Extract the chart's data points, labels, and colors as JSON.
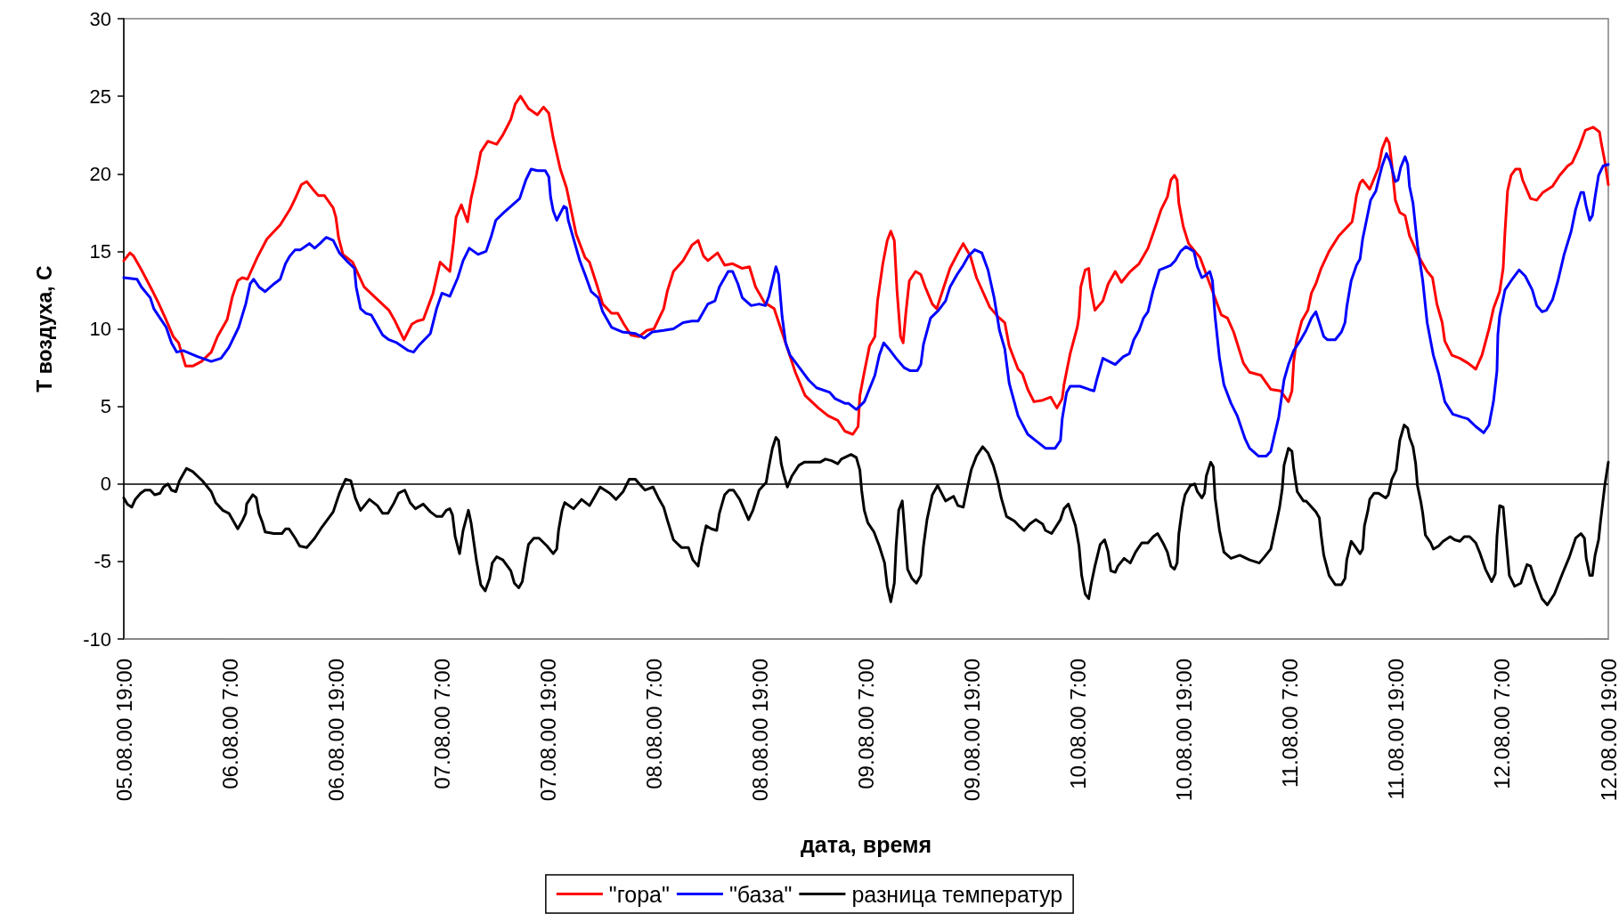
{
  "chart_data": {
    "type": "line",
    "xlabel": "дата, время",
    "ylabel": "Т воздуха, С",
    "xlim": [
      "2000-08-05T19:00",
      "2000-08-12T19:00"
    ],
    "xticks": [
      {
        "value": "2000-08-05T19:00",
        "label": "05.08.00 19:00"
      },
      {
        "value": "2000-08-06T07:00",
        "label": "06.08.00 7:00"
      },
      {
        "value": "2000-08-06T19:00",
        "label": "06.08.00 19:00"
      },
      {
        "value": "2000-08-07T07:00",
        "label": "07.08.00 7:00"
      },
      {
        "value": "2000-08-07T19:00",
        "label": "07.08.00 19:00"
      },
      {
        "value": "2000-08-08T07:00",
        "label": "08.08.00 7:00"
      },
      {
        "value": "2000-08-08T19:00",
        "label": "08.08.00 19:00"
      },
      {
        "value": "2000-08-09T07:00",
        "label": "09.08.00 7:00"
      },
      {
        "value": "2000-08-09T19:00",
        "label": "09.08.00 19:00"
      },
      {
        "value": "2000-08-10T07:00",
        "label": "10.08.00 7:00"
      },
      {
        "value": "2000-08-10T19:00",
        "label": "10.08.00 19:00"
      },
      {
        "value": "2000-08-11T07:00",
        "label": "11.08.00 7:00"
      },
      {
        "value": "2000-08-11T19:00",
        "label": "11.08.00 19:00"
      },
      {
        "value": "2000-08-12T07:00",
        "label": "12.08.00 7:00"
      },
      {
        "value": "2000-08-12T19:00",
        "label": "12.08.00 19:00"
      }
    ],
    "ylim": [
      -10,
      30
    ],
    "yticks": [
      -10,
      -5,
      0,
      5,
      10,
      15,
      20,
      25,
      30
    ],
    "grid": false,
    "legend": "bottom",
    "marker": "none",
    "line_style": "solid",
    "ref_lines": [
      {
        "axis": "y",
        "value": 0,
        "color": "#000000"
      }
    ],
    "series": [
      {
        "name": "\"гора\"",
        "color": "#ff0000",
        "x": [
          "2000-08-05T19:00",
          "2000-08-05T19:42",
          "2000-08-05T20:06",
          "2000-08-05T21:00",
          "2000-08-05T22:12",
          "2000-08-05T22:54",
          "2000-08-05T23:42",
          "2000-08-06T00:36",
          "2000-08-06T01:12",
          "2000-08-06T02:00",
          "2000-08-06T02:48",
          "2000-08-06T03:48",
          "2000-08-06T04:54",
          "2000-08-06T05:36",
          "2000-08-06T06:42",
          "2000-08-06T07:18",
          "2000-08-06T07:54",
          "2000-08-06T08:24",
          "2000-08-06T09:00",
          "2000-08-06T10:06",
          "2000-08-06T11:12",
          "2000-08-06T12:42",
          "2000-08-06T13:48",
          "2000-08-06T14:24",
          "2000-08-06T15:06",
          "2000-08-06T15:42",
          "2000-08-06T16:24",
          "2000-08-06T17:00",
          "2000-08-06T17:42",
          "2000-08-06T18:42",
          "2000-08-06T19:00",
          "2000-08-06T19:18",
          "2000-08-06T19:48",
          "2000-08-06T20:54",
          "2000-08-06T22:12",
          "2000-08-06T23:30",
          "2000-08-07T01:00",
          "2000-08-07T01:42",
          "2000-08-07T02:42",
          "2000-08-07T03:36",
          "2000-08-07T04:12",
          "2000-08-07T04:54",
          "2000-08-07T06:00",
          "2000-08-07T06:48",
          "2000-08-07T07:54",
          "2000-08-07T08:18",
          "2000-08-07T08:36",
          "2000-08-07T09:12",
          "2000-08-07T09:54",
          "2000-08-07T10:18",
          "2000-08-07T10:54",
          "2000-08-07T11:24",
          "2000-08-07T12:12",
          "2000-08-07T13:12",
          "2000-08-07T13:54",
          "2000-08-07T14:48",
          "2000-08-07T15:18",
          "2000-08-07T15:54",
          "2000-08-07T16:48",
          "2000-08-07T17:48",
          "2000-08-07T18:30",
          "2000-08-07T19:06",
          "2000-08-07T19:36",
          "2000-08-07T20:24",
          "2000-08-07T21:06",
          "2000-08-07T22:12",
          "2000-08-07T23:12",
          "2000-08-07T23:42",
          "2000-08-08T00:30",
          "2000-08-08T01:12",
          "2000-08-08T02:12",
          "2000-08-08T02:54",
          "2000-08-08T03:36",
          "2000-08-08T04:24",
          "2000-08-08T05:18",
          "2000-08-08T06:12",
          "2000-08-08T07:00",
          "2000-08-08T08:06",
          "2000-08-08T08:30",
          "2000-08-08T09:12",
          "2000-08-08T10:18",
          "2000-08-08T11:18",
          "2000-08-08T12:00",
          "2000-08-08T12:36",
          "2000-08-08T13:06",
          "2000-08-08T14:12",
          "2000-08-08T15:00",
          "2000-08-08T15:54",
          "2000-08-08T17:00",
          "2000-08-08T17:48",
          "2000-08-08T18:30",
          "2000-08-08T19:30",
          "2000-08-08T20:36",
          "2000-08-08T21:18",
          "2000-08-08T22:18",
          "2000-08-08T23:00",
          "2000-08-09T00:06",
          "2000-08-09T01:36",
          "2000-08-09T02:42",
          "2000-08-09T03:48",
          "2000-08-09T04:36",
          "2000-08-09T05:30",
          "2000-08-09T06:06",
          "2000-08-09T06:18",
          "2000-08-09T06:48",
          "2000-08-09T07:24",
          "2000-08-09T08:00",
          "2000-08-09T08:18",
          "2000-08-09T08:54",
          "2000-08-09T09:24",
          "2000-08-09T09:48",
          "2000-08-09T10:12",
          "2000-08-09T10:30",
          "2000-08-09T10:54",
          "2000-08-09T11:12",
          "2000-08-09T11:30",
          "2000-08-09T11:54",
          "2000-08-09T12:36",
          "2000-08-09T13:12",
          "2000-08-09T13:42",
          "2000-08-09T14:30",
          "2000-08-09T15:00",
          "2000-08-09T15:48",
          "2000-08-09T16:30",
          "2000-08-09T17:30",
          "2000-08-09T18:00",
          "2000-08-09T18:48",
          "2000-08-09T19:30",
          "2000-08-09T21:00",
          "2000-08-09T21:54",
          "2000-08-09T22:42",
          "2000-08-09T23:12",
          "2000-08-10T00:12",
          "2000-08-10T00:42",
          "2000-08-10T01:18",
          "2000-08-10T02:00",
          "2000-08-10T03:00",
          "2000-08-10T03:54",
          "2000-08-10T04:36",
          "2000-08-10T05:12",
          "2000-08-10T05:24",
          "2000-08-10T06:06",
          "2000-08-10T06:54",
          "2000-08-10T07:06",
          "2000-08-10T07:18",
          "2000-08-10T07:48",
          "2000-08-10T08:12",
          "2000-08-10T08:24",
          "2000-08-10T08:54",
          "2000-08-10T09:48",
          "2000-08-10T10:24",
          "2000-08-10T11:12",
          "2000-08-10T11:54",
          "2000-08-10T12:54",
          "2000-08-10T13:54",
          "2000-08-10T14:54",
          "2000-08-10T15:42",
          "2000-08-10T16:24",
          "2000-08-10T17:06",
          "2000-08-10T17:30",
          "2000-08-10T17:54",
          "2000-08-10T18:12",
          "2000-08-10T18:24",
          "2000-08-10T18:54",
          "2000-08-10T19:30",
          "2000-08-10T20:48",
          "2000-08-10T21:54",
          "2000-08-10T23:12",
          "2000-08-10T23:54",
          "2000-08-11T00:36",
          "2000-08-11T01:42",
          "2000-08-11T02:24",
          "2000-08-11T03:42",
          "2000-08-11T04:48",
          "2000-08-11T05:54",
          "2000-08-11T06:48",
          "2000-08-11T07:12",
          "2000-08-11T07:24",
          "2000-08-11T07:42",
          "2000-08-11T08:18",
          "2000-08-11T09:00",
          "2000-08-11T09:24",
          "2000-08-11T09:54",
          "2000-08-11T10:30",
          "2000-08-11T11:24",
          "2000-08-11T12:30",
          "2000-08-11T14:00",
          "2000-08-11T14:12",
          "2000-08-11T14:30",
          "2000-08-11T14:54",
          "2000-08-11T15:12",
          "2000-08-11T16:00",
          "2000-08-11T16:30",
          "2000-08-11T17:00",
          "2000-08-11T17:24",
          "2000-08-11T17:54",
          "2000-08-11T18:12",
          "2000-08-11T18:30",
          "2000-08-11T18:54",
          "2000-08-11T19:24",
          "2000-08-11T20:00",
          "2000-08-11T20:30",
          "2000-08-11T21:36",
          "2000-08-11T22:30",
          "2000-08-11T23:06",
          "2000-08-11T23:36",
          "2000-08-12T00:12",
          "2000-08-12T00:30",
          "2000-08-12T01:18",
          "2000-08-12T02:12",
          "2000-08-12T03:06",
          "2000-08-12T04:00",
          "2000-08-12T04:42",
          "2000-08-12T05:30",
          "2000-08-12T06:00",
          "2000-08-12T06:42",
          "2000-08-12T07:06",
          "2000-08-12T07:18",
          "2000-08-12T07:36",
          "2000-08-12T08:00",
          "2000-08-12T08:30",
          "2000-08-12T09:00",
          "2000-08-12T09:18",
          "2000-08-12T10:12",
          "2000-08-12T10:54",
          "2000-08-12T11:36",
          "2000-08-12T12:42",
          "2000-08-12T13:30",
          "2000-08-12T14:24",
          "2000-08-12T14:54",
          "2000-08-12T15:42",
          "2000-08-12T16:24",
          "2000-08-12T17:18",
          "2000-08-12T18:00",
          "2000-08-12T18:12",
          "2000-08-12T18:36",
          "2000-08-12T19:00"
        ],
        "values": [
          14.4,
          14.9,
          14.7,
          13.8,
          12.5,
          11.7,
          10.7,
          9.5,
          9.1,
          7.6,
          7.6,
          7.9,
          8.5,
          9.5,
          10.6,
          12.1,
          13.1,
          13.3,
          13.2,
          14.6,
          15.8,
          16.7,
          17.7,
          18.4,
          19.3,
          19.5,
          19.0,
          18.6,
          18.6,
          17.8,
          17.2,
          15.9,
          14.8,
          14.3,
          12.7,
          12.0,
          11.2,
          10.5,
          9.3,
          10.3,
          10.5,
          10.6,
          12.3,
          14.3,
          13.7,
          15.5,
          17.2,
          18.0,
          16.9,
          18.4,
          19.9,
          21.4,
          22.1,
          21.9,
          22.5,
          23.5,
          24.5,
          25.0,
          24.2,
          23.8,
          24.3,
          23.9,
          22.3,
          20.3,
          19.1,
          16.1,
          14.6,
          14.3,
          12.9,
          11.6,
          11.0,
          11.0,
          10.3,
          9.6,
          9.5,
          9.9,
          10.0,
          11.3,
          12.4,
          13.7,
          14.4,
          15.4,
          15.7,
          14.7,
          14.4,
          14.9,
          14.1,
          14.2,
          13.9,
          14.0,
          12.7,
          11.7,
          11.3,
          10.1,
          8.4,
          7.2,
          5.7,
          4.9,
          4.4,
          4.1,
          3.4,
          3.2,
          3.7,
          5.7,
          7.2,
          8.9,
          9.5,
          11.8,
          14.2,
          15.7,
          16.3,
          15.7,
          12.5,
          9.5,
          9.1,
          11.0,
          13.1,
          13.7,
          13.5,
          12.7,
          11.6,
          11.3,
          12.7,
          13.9,
          15.0,
          15.5,
          14.7,
          13.3,
          11.4,
          10.8,
          10.4,
          8.9,
          7.4,
          7.1,
          6.1,
          5.3,
          5.4,
          5.6,
          4.9,
          5.5,
          6.4,
          8.4,
          10.1,
          10.8,
          12.7,
          13.8,
          13.9,
          12.7,
          11.2,
          11.8,
          12.9,
          13.7,
          13.0,
          13.7,
          14.2,
          15.2,
          16.5,
          17.7,
          18.5,
          19.6,
          19.9,
          19.6,
          18.1,
          16.6,
          15.5,
          14.6,
          12.9,
          10.9,
          10.7,
          9.8,
          7.8,
          7.2,
          7.0,
          6.1,
          6.0,
          5.3,
          6.0,
          7.9,
          9.2,
          10.5,
          11.2,
          12.3,
          12.9,
          13.9,
          15.0,
          16.0,
          16.9,
          17.5,
          18.6,
          19.4,
          19.6,
          19.0,
          19.7,
          20.4,
          21.6,
          22.3,
          22.0,
          20.6,
          18.3,
          17.5,
          17.3,
          16.0,
          14.6,
          13.7,
          13.3,
          11.6,
          10.4,
          9.2,
          8.3,
          8.1,
          7.8,
          7.4,
          8.3,
          10.0,
          11.3,
          12.4,
          13.9,
          16.2,
          18.9,
          19.9,
          20.3,
          20.3,
          19.6,
          18.4,
          18.3,
          18.8,
          19.2,
          19.9,
          20.5,
          20.7,
          21.7,
          22.8,
          23.0,
          22.7,
          22.0,
          20.8,
          19.3
        ]
      },
      {
        "name": "\"база\"",
        "color": "#0000ff",
        "x": [
          "2000-08-05T19:00",
          "2000-08-05T20:30",
          "2000-08-05T21:00",
          "2000-08-05T22:00",
          "2000-08-05T22:24",
          "2000-08-05T23:06",
          "2000-08-05T23:48",
          "2000-08-06T00:24",
          "2000-08-06T01:00",
          "2000-08-06T01:42",
          "2000-08-06T03:24",
          "2000-08-06T04:54",
          "2000-08-06T06:00",
          "2000-08-06T06:54",
          "2000-08-06T08:00",
          "2000-08-06T08:48",
          "2000-08-06T09:18",
          "2000-08-06T09:42",
          "2000-08-06T10:18",
          "2000-08-06T11:00",
          "2000-08-06T12:00",
          "2000-08-06T12:42",
          "2000-08-06T13:18",
          "2000-08-06T13:48",
          "2000-08-06T14:24",
          "2000-08-06T15:00",
          "2000-08-06T16:00",
          "2000-08-06T16:36",
          "2000-08-06T17:12",
          "2000-08-06T17:54",
          "2000-08-06T18:42",
          "2000-08-06T19:24",
          "2000-08-06T20:12",
          "2000-08-06T21:06",
          "2000-08-06T21:18",
          "2000-08-06T21:48",
          "2000-08-06T22:24",
          "2000-08-06T23:00",
          "2000-08-07T00:18",
          "2000-08-07T01:00",
          "2000-08-07T01:54",
          "2000-08-07T03:12",
          "2000-08-07T03:48",
          "2000-08-07T04:30",
          "2000-08-07T05:42",
          "2000-08-07T06:24",
          "2000-08-07T07:00",
          "2000-08-07T07:54",
          "2000-08-07T08:48",
          "2000-08-07T09:24",
          "2000-08-07T10:06",
          "2000-08-07T11:06",
          "2000-08-07T12:00",
          "2000-08-07T12:36",
          "2000-08-07T13:06",
          "2000-08-07T14:00",
          "2000-08-07T15:24",
          "2000-08-07T15:48",
          "2000-08-07T16:30",
          "2000-08-07T17:06",
          "2000-08-07T17:48",
          "2000-08-07T18:42",
          "2000-08-07T19:06",
          "2000-08-07T19:18",
          "2000-08-07T19:36",
          "2000-08-07T20:00",
          "2000-08-07T20:48",
          "2000-08-07T21:06",
          "2000-08-07T21:18",
          "2000-08-07T22:06",
          "2000-08-07T22:36",
          "2000-08-07T23:12",
          "2000-08-07T23:54",
          "2000-08-08T00:42",
          "2000-08-08T01:12",
          "2000-08-08T02:12",
          "2000-08-08T03:24",
          "2000-08-08T04:54",
          "2000-08-08T05:54",
          "2000-08-08T06:48",
          "2000-08-08T08:06",
          "2000-08-08T09:12",
          "2000-08-08T10:18",
          "2000-08-08T11:18",
          "2000-08-08T12:00",
          "2000-08-08T13:06",
          "2000-08-08T13:54",
          "2000-08-08T14:24",
          "2000-08-08T15:24",
          "2000-08-08T15:54",
          "2000-08-08T16:30",
          "2000-08-08T17:00",
          "2000-08-08T18:00",
          "2000-08-08T18:54",
          "2000-08-08T19:36",
          "2000-08-08T20:00",
          "2000-08-08T20:48",
          "2000-08-08T21:06",
          "2000-08-08T21:30",
          "2000-08-08T21:54",
          "2000-08-08T22:24",
          "2000-08-08T23:12",
          "2000-08-09T00:30",
          "2000-08-09T01:24",
          "2000-08-09T02:54",
          "2000-08-09T03:30",
          "2000-08-09T04:36",
          "2000-08-09T05:00",
          "2000-08-09T05:54",
          "2000-08-09T06:48",
          "2000-08-09T08:00",
          "2000-08-09T08:30",
          "2000-08-09T09:00",
          "2000-08-09T09:36",
          "2000-08-09T10:24",
          "2000-08-09T11:18",
          "2000-08-09T12:00",
          "2000-08-09T12:48",
          "2000-08-09T13:12",
          "2000-08-09T13:30",
          "2000-08-09T14:18",
          "2000-08-09T15:12",
          "2000-08-09T16:00",
          "2000-08-09T16:30",
          "2000-08-09T17:18",
          "2000-08-09T18:00",
          "2000-08-09T18:36",
          "2000-08-09T19:18",
          "2000-08-09T20:06",
          "2000-08-09T20:48",
          "2000-08-09T21:30",
          "2000-08-09T22:06",
          "2000-08-09T22:42",
          "2000-08-09T23:12",
          "2000-08-10T00:12",
          "2000-08-10T01:18",
          "2000-08-10T02:24",
          "2000-08-10T03:18",
          "2000-08-10T04:24",
          "2000-08-10T05:00",
          "2000-08-10T05:12",
          "2000-08-10T05:42",
          "2000-08-10T06:06",
          "2000-08-10T07:12",
          "2000-08-10T08:12",
          "2000-08-10T08:48",
          "2000-08-10T09:06",
          "2000-08-10T09:48",
          "2000-08-10T11:12",
          "2000-08-10T12:06",
          "2000-08-10T12:48",
          "2000-08-10T13:18",
          "2000-08-10T13:54",
          "2000-08-10T14:24",
          "2000-08-10T14:54",
          "2000-08-10T15:30",
          "2000-08-10T16:12",
          "2000-08-10T17:30",
          "2000-08-10T18:00",
          "2000-08-10T18:36",
          "2000-08-10T19:12",
          "2000-08-10T20:06",
          "2000-08-10T20:30",
          "2000-08-10T21:00",
          "2000-08-10T21:18",
          "2000-08-10T21:54",
          "2000-08-10T22:12",
          "2000-08-10T22:30",
          "2000-08-10T23:00",
          "2000-08-10T23:30",
          "2000-08-11T00:18",
          "2000-08-11T01:00",
          "2000-08-11T01:54",
          "2000-08-11T02:24",
          "2000-08-11T03:24",
          "2000-08-11T04:18",
          "2000-08-11T04:48",
          "2000-08-11T05:12",
          "2000-08-11T05:42",
          "2000-08-11T06:18",
          "2000-08-11T06:48",
          "2000-08-11T07:24",
          "2000-08-11T08:06",
          "2000-08-11T08:48",
          "2000-08-11T09:24",
          "2000-08-11T09:54",
          "2000-08-11T10:18",
          "2000-08-11T10:48",
          "2000-08-11T11:12",
          "2000-08-11T12:06",
          "2000-08-11T12:48",
          "2000-08-11T13:12",
          "2000-08-11T13:24",
          "2000-08-11T13:54",
          "2000-08-11T14:30",
          "2000-08-11T14:54",
          "2000-08-11T15:12",
          "2000-08-11T15:36",
          "2000-08-11T16:06",
          "2000-08-11T16:42",
          "2000-08-11T17:00",
          "2000-08-11T17:24",
          "2000-08-11T17:54",
          "2000-08-11T18:18",
          "2000-08-11T18:54",
          "2000-08-11T19:12",
          "2000-08-11T19:30",
          "2000-08-11T20:00",
          "2000-08-11T20:18",
          "2000-08-11T20:30",
          "2000-08-11T20:54",
          "2000-08-11T21:24",
          "2000-08-11T22:00",
          "2000-08-11T22:30",
          "2000-08-11T23:12",
          "2000-08-11T23:48",
          "2000-08-12T00:30",
          "2000-08-12T01:24",
          "2000-08-12T02:30",
          "2000-08-12T03:06",
          "2000-08-12T04:00",
          "2000-08-12T04:54",
          "2000-08-12T05:30",
          "2000-08-12T06:00",
          "2000-08-12T06:24",
          "2000-08-12T06:30",
          "2000-08-12T06:42",
          "2000-08-12T07:18",
          "2000-08-12T08:00",
          "2000-08-12T08:54",
          "2000-08-12T09:36",
          "2000-08-12T10:24",
          "2000-08-12T10:54",
          "2000-08-12T11:30",
          "2000-08-12T12:00",
          "2000-08-12T12:42",
          "2000-08-12T13:18",
          "2000-08-12T14:00",
          "2000-08-12T14:48",
          "2000-08-12T15:18",
          "2000-08-12T15:54",
          "2000-08-12T16:12",
          "2000-08-12T16:30",
          "2000-08-12T16:54",
          "2000-08-12T17:12",
          "2000-08-12T17:30",
          "2000-08-12T17:54",
          "2000-08-12T18:24",
          "2000-08-12T19:00"
        ],
        "values": [
          13.3,
          13.2,
          12.7,
          12.0,
          11.3,
          10.7,
          10.1,
          9.1,
          8.5,
          8.6,
          8.2,
          7.9,
          8.1,
          8.8,
          10.1,
          11.6,
          12.9,
          13.2,
          12.7,
          12.4,
          12.9,
          13.2,
          14.2,
          14.7,
          15.1,
          15.1,
          15.5,
          15.2,
          15.5,
          15.9,
          15.7,
          14.9,
          14.4,
          13.9,
          12.7,
          11.3,
          11.0,
          10.9,
          9.6,
          9.3,
          9.1,
          8.6,
          8.5,
          9.0,
          9.7,
          11.3,
          12.3,
          12.1,
          13.3,
          14.4,
          15.2,
          14.8,
          15.0,
          16.0,
          17.0,
          17.5,
          18.2,
          18.4,
          19.6,
          20.3,
          20.2,
          20.2,
          19.8,
          18.5,
          17.6,
          17.0,
          17.9,
          17.8,
          17.0,
          15.4,
          14.4,
          13.5,
          12.4,
          12.0,
          11.1,
          10.1,
          9.8,
          9.7,
          9.4,
          9.8,
          9.9,
          10.0,
          10.4,
          10.5,
          10.5,
          11.6,
          11.8,
          12.7,
          13.7,
          13.7,
          12.9,
          12.0,
          11.5,
          11.6,
          11.5,
          12.1,
          14.0,
          13.5,
          10.8,
          9.1,
          8.3,
          7.7,
          6.7,
          6.2,
          5.9,
          5.5,
          5.2,
          5.2,
          4.8,
          5.3,
          7.0,
          8.3,
          9.1,
          8.7,
          8.1,
          7.5,
          7.3,
          7.3,
          7.7,
          9.0,
          10.7,
          11.2,
          11.8,
          12.7,
          13.5,
          14.1,
          14.7,
          15.1,
          14.9,
          13.8,
          12.0,
          9.9,
          8.7,
          6.5,
          4.4,
          3.2,
          2.7,
          2.3,
          2.3,
          2.8,
          4.2,
          5.9,
          6.3,
          6.3,
          6.1,
          6.0,
          6.7,
          8.1,
          7.7,
          8.2,
          8.4,
          9.3,
          9.9,
          10.7,
          11.1,
          12.5,
          13.8,
          14.1,
          14.4,
          15.0,
          15.3,
          15.0,
          14.0,
          13.3,
          13.4,
          13.7,
          13.1,
          10.8,
          8.1,
          6.4,
          5.2,
          4.4,
          2.9,
          2.3,
          1.8,
          1.8,
          2.1,
          3.1,
          4.3,
          6.7,
          7.7,
          8.6,
          9.2,
          9.9,
          10.7,
          11.1,
          10.4,
          9.5,
          9.3,
          9.3,
          9.8,
          10.4,
          11.4,
          13.1,
          14.1,
          14.5,
          15.8,
          16.9,
          18.3,
          18.9,
          19.6,
          20.5,
          21.3,
          20.8,
          19.5,
          19.6,
          20.4,
          21.1,
          20.6,
          19.2,
          18.1,
          15.4,
          13.1,
          10.4,
          8.3,
          7.1,
          5.3,
          4.5,
          4.3,
          4.2,
          3.7,
          3.3,
          3.8,
          5.3,
          7.3,
          9.6,
          10.8,
          12.5,
          13.1,
          13.8,
          13.4,
          12.5,
          11.5,
          11.1,
          11.2,
          11.9,
          13.1,
          14.8,
          16.3,
          17.7,
          18.8,
          18.8,
          17.9,
          17.0,
          17.3,
          18.5,
          19.9,
          20.5,
          20.6
        ]
      },
      {
        "name": "разница температур",
        "color": "#000000",
        "x": [
          "2000-08-05T19:00",
          "2000-08-05T19:24",
          "2000-08-05T19:54",
          "2000-08-05T20:18",
          "2000-08-05T20:54",
          "2000-08-05T21:24",
          "2000-08-05T22:00",
          "2000-08-05T22:30",
          "2000-08-05T23:06",
          "2000-08-05T23:30",
          "2000-08-06T00:00",
          "2000-08-06T00:24",
          "2000-08-06T00:54",
          "2000-08-06T01:18",
          "2000-08-06T02:06",
          "2000-08-06T02:48",
          "2000-08-06T03:54",
          "2000-08-06T04:54",
          "2000-08-06T05:24",
          "2000-08-06T06:12",
          "2000-08-06T06:54",
          "2000-08-06T07:30",
          "2000-08-06T07:54",
          "2000-08-06T08:24",
          "2000-08-06T08:48",
          "2000-08-06T08:54",
          "2000-08-06T09:36",
          "2000-08-06T10:00",
          "2000-08-06T10:18",
          "2000-08-06T10:42",
          "2000-08-06T11:00",
          "2000-08-06T12:00",
          "2000-08-06T12:54",
          "2000-08-06T13:18",
          "2000-08-06T13:42",
          "2000-08-06T14:24",
          "2000-08-06T14:54",
          "2000-08-06T15:42",
          "2000-08-06T16:36",
          "2000-08-06T17:24",
          "2000-08-06T18:42",
          "2000-08-06T19:24",
          "2000-08-06T20:06",
          "2000-08-06T20:42",
          "2000-08-06T21:12",
          "2000-08-06T21:48",
          "2000-08-06T22:48",
          "2000-08-06T23:42",
          "2000-08-07T00:18",
          "2000-08-07T00:54",
          "2000-08-07T01:36",
          "2000-08-07T02:06",
          "2000-08-07T02:48",
          "2000-08-07T03:24",
          "2000-08-07T04:00",
          "2000-08-07T04:54",
          "2000-08-07T05:42",
          "2000-08-07T06:24",
          "2000-08-07T07:00",
          "2000-08-07T07:30",
          "2000-08-07T07:54",
          "2000-08-07T08:12",
          "2000-08-07T08:30",
          "2000-08-07T09:00",
          "2000-08-07T09:24",
          "2000-08-07T10:00",
          "2000-08-07T10:18",
          "2000-08-07T10:54",
          "2000-08-07T11:24",
          "2000-08-07T11:54",
          "2000-08-07T12:24",
          "2000-08-07T12:42",
          "2000-08-07T13:12",
          "2000-08-07T13:54",
          "2000-08-07T14:48",
          "2000-08-07T15:12",
          "2000-08-07T15:42",
          "2000-08-07T16:06",
          "2000-08-07T16:24",
          "2000-08-07T16:48",
          "2000-08-07T17:24",
          "2000-08-07T18:00",
          "2000-08-07T18:54",
          "2000-08-07T19:36",
          "2000-08-07T20:00",
          "2000-08-07T20:12",
          "2000-08-07T20:36",
          "2000-08-07T20:54",
          "2000-08-07T21:54",
          "2000-08-07T22:48",
          "2000-08-07T23:42",
          "2000-08-08T00:18",
          "2000-08-08T00:54",
          "2000-08-08T02:00",
          "2000-08-08T02:42",
          "2000-08-08T03:30",
          "2000-08-08T04:12",
          "2000-08-08T04:54",
          "2000-08-08T05:30",
          "2000-08-08T06:00",
          "2000-08-08T06:54",
          "2000-08-08T07:30",
          "2000-08-08T08:06",
          "2000-08-08T08:30",
          "2000-08-08T09:12",
          "2000-08-08T10:06",
          "2000-08-08T10:54",
          "2000-08-08T11:24",
          "2000-08-08T12:00",
          "2000-08-08T12:24",
          "2000-08-08T12:54",
          "2000-08-08T13:30",
          "2000-08-08T14:06",
          "2000-08-08T14:24",
          "2000-08-08T15:00",
          "2000-08-08T15:30",
          "2000-08-08T16:00",
          "2000-08-08T16:42",
          "2000-08-08T17:42",
          "2000-08-08T18:12",
          "2000-08-08T18:54",
          "2000-08-08T19:42",
          "2000-08-08T20:00",
          "2000-08-08T20:24",
          "2000-08-08T20:48",
          "2000-08-08T21:06",
          "2000-08-08T21:24",
          "2000-08-08T21:42",
          "2000-08-08T22:06",
          "2000-08-08T22:36",
          "2000-08-08T23:24",
          "2000-08-09T00:00",
          "2000-08-09T01:48",
          "2000-08-09T02:24",
          "2000-08-09T03:06",
          "2000-08-09T03:48",
          "2000-08-09T04:12",
          "2000-08-09T05:18",
          "2000-08-09T05:54",
          "2000-08-09T06:18",
          "2000-08-09T06:30",
          "2000-08-09T06:48",
          "2000-08-09T07:12",
          "2000-08-09T07:54",
          "2000-08-09T08:30",
          "2000-08-09T09:06",
          "2000-08-09T09:24",
          "2000-08-09T09:48",
          "2000-08-09T10:12",
          "2000-08-09T10:24",
          "2000-08-09T10:42",
          "2000-08-09T11:06",
          "2000-08-09T11:18",
          "2000-08-09T11:42",
          "2000-08-09T12:12",
          "2000-08-09T12:42",
          "2000-08-09T13:12",
          "2000-08-09T13:30",
          "2000-08-09T13:54",
          "2000-08-09T14:30",
          "2000-08-09T15:06",
          "2000-08-09T16:00",
          "2000-08-09T16:54",
          "2000-08-09T17:24",
          "2000-08-09T18:00",
          "2000-08-09T18:24",
          "2000-08-09T18:54",
          "2000-08-09T19:30",
          "2000-08-09T20:12",
          "2000-08-09T20:48",
          "2000-08-09T21:24",
          "2000-08-09T21:54",
          "2000-08-09T22:18",
          "2000-08-09T22:54",
          "2000-08-09T23:48",
          "2000-08-10T00:18",
          "2000-08-10T00:54",
          "2000-08-10T01:30",
          "2000-08-10T02:12",
          "2000-08-10T03:00",
          "2000-08-10T03:18",
          "2000-08-10T04:00",
          "2000-08-10T05:00",
          "2000-08-10T05:24",
          "2000-08-10T05:54",
          "2000-08-10T06:42",
          "2000-08-10T07:06",
          "2000-08-10T07:24",
          "2000-08-10T07:48",
          "2000-08-10T08:12",
          "2000-08-10T08:30",
          "2000-08-10T08:54",
          "2000-08-10T09:30",
          "2000-08-10T10:00",
          "2000-08-10T10:24",
          "2000-08-10T10:42",
          "2000-08-10T11:12",
          "2000-08-10T11:30",
          "2000-08-10T12:12",
          "2000-08-10T12:54",
          "2000-08-10T13:30",
          "2000-08-10T14:12",
          "2000-08-10T14:54",
          "2000-08-10T15:30",
          "2000-08-10T16:00",
          "2000-08-10T16:36",
          "2000-08-10T17:06",
          "2000-08-10T17:30",
          "2000-08-10T17:54",
          "2000-08-10T18:12",
          "2000-08-10T18:24",
          "2000-08-10T18:48",
          "2000-08-10T19:06",
          "2000-08-10T19:42",
          "2000-08-10T20:12",
          "2000-08-10T20:30",
          "2000-08-10T21:00",
          "2000-08-10T21:18",
          "2000-08-10T21:30",
          "2000-08-10T22:00",
          "2000-08-10T22:18",
          "2000-08-10T22:30",
          "2000-08-10T23:00",
          "2000-08-10T23:30",
          "2000-08-11T00:18",
          "2000-08-11T01:18",
          "2000-08-11T02:24",
          "2000-08-11T03:30",
          "2000-08-11T04:06",
          "2000-08-11T04:48",
          "2000-08-11T05:24",
          "2000-08-11T05:48",
          "2000-08-11T06:06",
          "2000-08-11T06:18",
          "2000-08-11T06:48",
          "2000-08-11T07:12",
          "2000-08-11T07:24",
          "2000-08-11T07:48",
          "2000-08-11T08:30",
          "2000-08-11T08:48",
          "2000-08-11T09:54",
          "2000-08-11T10:18",
          "2000-08-11T10:30",
          "2000-08-11T10:48",
          "2000-08-11T11:24",
          "2000-08-11T12:06",
          "2000-08-11T12:48",
          "2000-08-11T13:12",
          "2000-08-11T13:24",
          "2000-08-11T13:54",
          "2000-08-11T14:18",
          "2000-08-11T14:54",
          "2000-08-11T15:12",
          "2000-08-11T15:24",
          "2000-08-11T15:48",
          "2000-08-11T16:00",
          "2000-08-11T16:30",
          "2000-08-11T17:00",
          "2000-08-11T17:48",
          "2000-08-11T18:06",
          "2000-08-11T18:30",
          "2000-08-11T19:00",
          "2000-08-11T19:24",
          "2000-08-11T19:54",
          "2000-08-11T20:18",
          "2000-08-11T20:30",
          "2000-08-11T20:54",
          "2000-08-11T21:12",
          "2000-08-11T21:24",
          "2000-08-11T21:48",
          "2000-08-11T22:00",
          "2000-08-11T22:18",
          "2000-08-11T22:54",
          "2000-08-11T23:12",
          "2000-08-11T23:48",
          "2000-08-12T00:18",
          "2000-08-12T01:06",
          "2000-08-12T01:36",
          "2000-08-12T02:12",
          "2000-08-12T02:42",
          "2000-08-12T03:18",
          "2000-08-12T04:00",
          "2000-08-12T04:30",
          "2000-08-12T05:06",
          "2000-08-12T05:48",
          "2000-08-12T06:12",
          "2000-08-12T06:24",
          "2000-08-12T06:42",
          "2000-08-12T07:06",
          "2000-08-12T07:24",
          "2000-08-12T07:48",
          "2000-08-12T08:24",
          "2000-08-12T09:06",
          "2000-08-12T09:30",
          "2000-08-12T09:48",
          "2000-08-12T10:12",
          "2000-08-12T10:42",
          "2000-08-12T11:30",
          "2000-08-12T12:06",
          "2000-08-12T12:54",
          "2000-08-12T13:48",
          "2000-08-12T14:36",
          "2000-08-12T15:18",
          "2000-08-12T15:54",
          "2000-08-12T16:18",
          "2000-08-12T16:30",
          "2000-08-12T16:54",
          "2000-08-12T17:12",
          "2000-08-12T17:30",
          "2000-08-12T17:54",
          "2000-08-12T18:06",
          "2000-08-12T18:36",
          "2000-08-12T19:00"
        ],
        "values": [
          -0.9,
          -1.3,
          -1.5,
          -1.0,
          -0.6,
          -0.4,
          -0.4,
          -0.7,
          -0.6,
          -0.2,
          0.0,
          -0.4,
          -0.5,
          0.2,
          1.0,
          0.8,
          0.2,
          -0.5,
          -1.2,
          -1.7,
          -1.9,
          -2.5,
          -2.9,
          -2.4,
          -1.9,
          -1.3,
          -0.7,
          -0.9,
          -1.9,
          -2.5,
          -3.1,
          -3.2,
          -3.2,
          -2.9,
          -2.9,
          -3.5,
          -4.0,
          -4.1,
          -3.5,
          -2.8,
          -1.8,
          -0.6,
          0.3,
          0.2,
          -0.9,
          -1.7,
          -1.0,
          -1.4,
          -1.9,
          -1.9,
          -1.2,
          -0.6,
          -0.4,
          -1.2,
          -1.6,
          -1.3,
          -1.8,
          -2.1,
          -2.1,
          -1.7,
          -1.6,
          -2.0,
          -3.4,
          -4.5,
          -3.0,
          -1.7,
          -2.5,
          -4.9,
          -6.5,
          -6.9,
          -6.1,
          -5.1,
          -4.7,
          -4.9,
          -5.6,
          -6.4,
          -6.7,
          -6.3,
          -5.2,
          -3.9,
          -3.5,
          -3.5,
          -4.0,
          -4.5,
          -4.2,
          -3.0,
          -1.7,
          -1.2,
          -1.6,
          -1.0,
          -1.4,
          -0.8,
          -0.2,
          -0.6,
          -1.0,
          -0.5,
          0.3,
          0.3,
          -0.1,
          -0.4,
          -0.2,
          -0.9,
          -1.5,
          -2.3,
          -3.6,
          -4.1,
          -4.1,
          -4.9,
          -5.3,
          -4.0,
          -2.7,
          -2.9,
          -3.0,
          -1.9,
          -0.7,
          -0.4,
          -0.4,
          -1.0,
          -2.3,
          -1.7,
          -0.4,
          0.1,
          1.1,
          2.3,
          3.0,
          2.8,
          1.3,
          0.6,
          -0.2,
          0.5,
          1.2,
          1.4,
          1.4,
          1.6,
          1.5,
          1.3,
          1.6,
          1.9,
          1.7,
          0.9,
          -0.4,
          -1.7,
          -2.5,
          -3.1,
          -4.0,
          -5.1,
          -6.6,
          -7.6,
          -6.4,
          -4.0,
          -1.7,
          -1.1,
          -2.5,
          -5.5,
          -6.1,
          -6.4,
          -5.9,
          -4.0,
          -2.3,
          -0.7,
          -0.1,
          -1.1,
          -0.8,
          -1.4,
          -1.5,
          -0.4,
          0.9,
          1.8,
          2.4,
          2.0,
          1.2,
          0.2,
          -0.9,
          -2.1,
          -2.4,
          -2.7,
          -3.0,
          -2.6,
          -2.3,
          -2.6,
          -3.0,
          -3.2,
          -2.3,
          -1.6,
          -1.3,
          -2.7,
          -4.0,
          -5.9,
          -7.1,
          -7.4,
          -6.4,
          -5.3,
          -3.9,
          -3.6,
          -4.4,
          -5.6,
          -5.7,
          -5.3,
          -4.8,
          -5.1,
          -4.4,
          -3.8,
          -3.8,
          -3.4,
          -3.2,
          -3.8,
          -4.4,
          -5.3,
          -5.5,
          -5.1,
          -3.2,
          -1.5,
          -0.7,
          -0.1,
          0.0,
          -0.5,
          -0.9,
          -0.6,
          0.5,
          1.4,
          1.1,
          -0.9,
          -3.0,
          -4.4,
          -4.8,
          -4.6,
          -4.9,
          -5.1,
          -4.7,
          -4.2,
          -2.6,
          -1.5,
          -0.3,
          1.2,
          2.3,
          2.1,
          1.0,
          -0.5,
          -1.1,
          -1.1,
          -1.8,
          -2.2,
          -3.3,
          -4.6,
          -5.9,
          -6.5,
          -6.5,
          -6.1,
          -4.9,
          -3.7,
          -4.0,
          -4.5,
          -4.2,
          -2.7,
          -1.7,
          -1.0,
          -0.6,
          -0.6,
          -0.9,
          -0.7,
          0.3,
          0.9,
          2.8,
          3.8,
          3.6,
          3.0,
          2.4,
          1.3,
          -0.1,
          -1.2,
          -1.9,
          -3.3,
          -3.8,
          -4.2,
          -4.0,
          -3.7,
          -3.4,
          -3.6,
          -3.7,
          -3.4,
          -3.4,
          -3.8,
          -4.5,
          -5.5,
          -6.3,
          -5.8,
          -3.4,
          -1.4,
          -1.5,
          -3.4,
          -5.9,
          -6.6,
          -6.4,
          -5.7,
          -5.2,
          -5.3,
          -6.2,
          -7.4,
          -7.8,
          -7.1,
          -5.8,
          -4.7,
          -3.5,
          -3.2,
          -3.5,
          -4.8,
          -5.9,
          -5.9,
          -4.6,
          -3.6,
          -2.5,
          -0.1,
          1.4
        ]
      }
    ]
  }
}
